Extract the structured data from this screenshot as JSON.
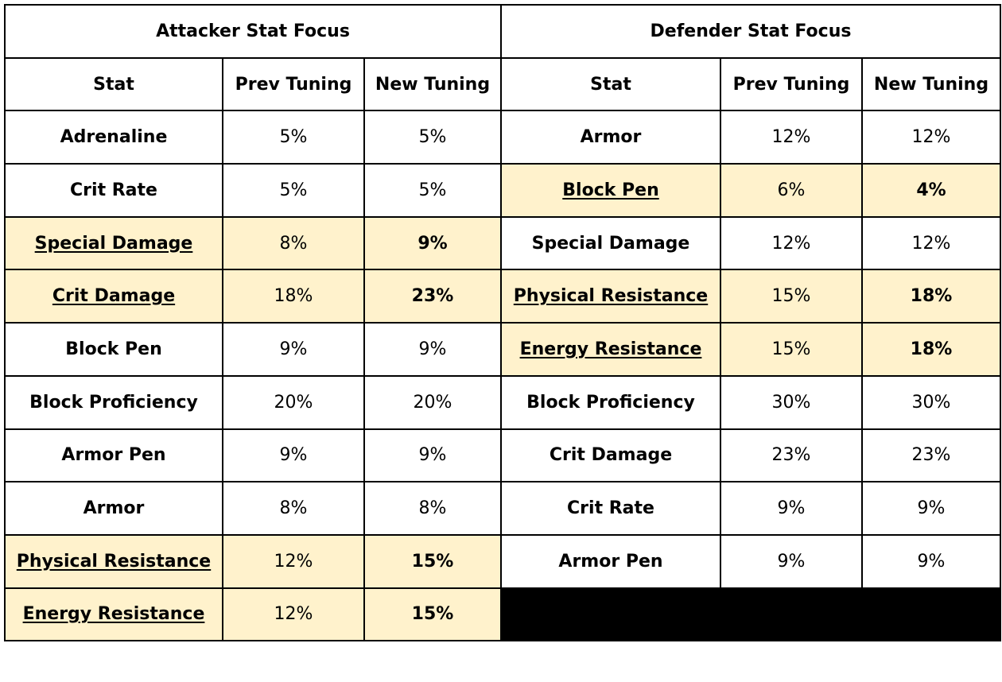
{
  "sections": {
    "attacker": "Attacker Stat Focus",
    "defender": "Defender Stat Focus"
  },
  "columns": [
    "Stat",
    "Prev Tuning",
    "New Tuning"
  ],
  "colors": {
    "stat_text": "#1e7a32",
    "changed_bg": "#fff2cc",
    "empty_block": "#000000"
  },
  "attacker_rows": [
    {
      "stat": "Adrenaline",
      "prev": "5%",
      "new": "5%",
      "changed": false
    },
    {
      "stat": "Crit Rate",
      "prev": "5%",
      "new": "5%",
      "changed": false
    },
    {
      "stat": "Special Damage",
      "prev": "8%",
      "new": "9%",
      "changed": true
    },
    {
      "stat": "Crit Damage",
      "prev": "18%",
      "new": "23%",
      "changed": true
    },
    {
      "stat": "Block Pen",
      "prev": "9%",
      "new": "9%",
      "changed": false
    },
    {
      "stat": "Block Proficiency",
      "prev": "20%",
      "new": "20%",
      "changed": false
    },
    {
      "stat": "Armor Pen",
      "prev": "9%",
      "new": "9%",
      "changed": false
    },
    {
      "stat": "Armor",
      "prev": "8%",
      "new": "8%",
      "changed": false
    },
    {
      "stat": "Physical Resistance",
      "prev": "12%",
      "new": "15%",
      "changed": true
    },
    {
      "stat": "Energy Resistance",
      "prev": "12%",
      "new": "15%",
      "changed": true
    }
  ],
  "defender_rows": [
    {
      "stat": "Armor",
      "prev": "12%",
      "new": "12%",
      "changed": false
    },
    {
      "stat": "Block Pen",
      "prev": "6%",
      "new": "4%",
      "changed": true
    },
    {
      "stat": "Special Damage",
      "prev": "12%",
      "new": "12%",
      "changed": false
    },
    {
      "stat": "Physical Resistance",
      "prev": "15%",
      "new": "18%",
      "changed": true
    },
    {
      "stat": "Energy Resistance",
      "prev": "15%",
      "new": "18%",
      "changed": true
    },
    {
      "stat": "Block Proficiency",
      "prev": "30%",
      "new": "30%",
      "changed": false
    },
    {
      "stat": "Crit Damage",
      "prev": "23%",
      "new": "23%",
      "changed": false
    },
    {
      "stat": "Crit Rate",
      "prev": "9%",
      "new": "9%",
      "changed": false
    },
    {
      "stat": "Armor Pen",
      "prev": "9%",
      "new": "9%",
      "changed": false
    }
  ]
}
